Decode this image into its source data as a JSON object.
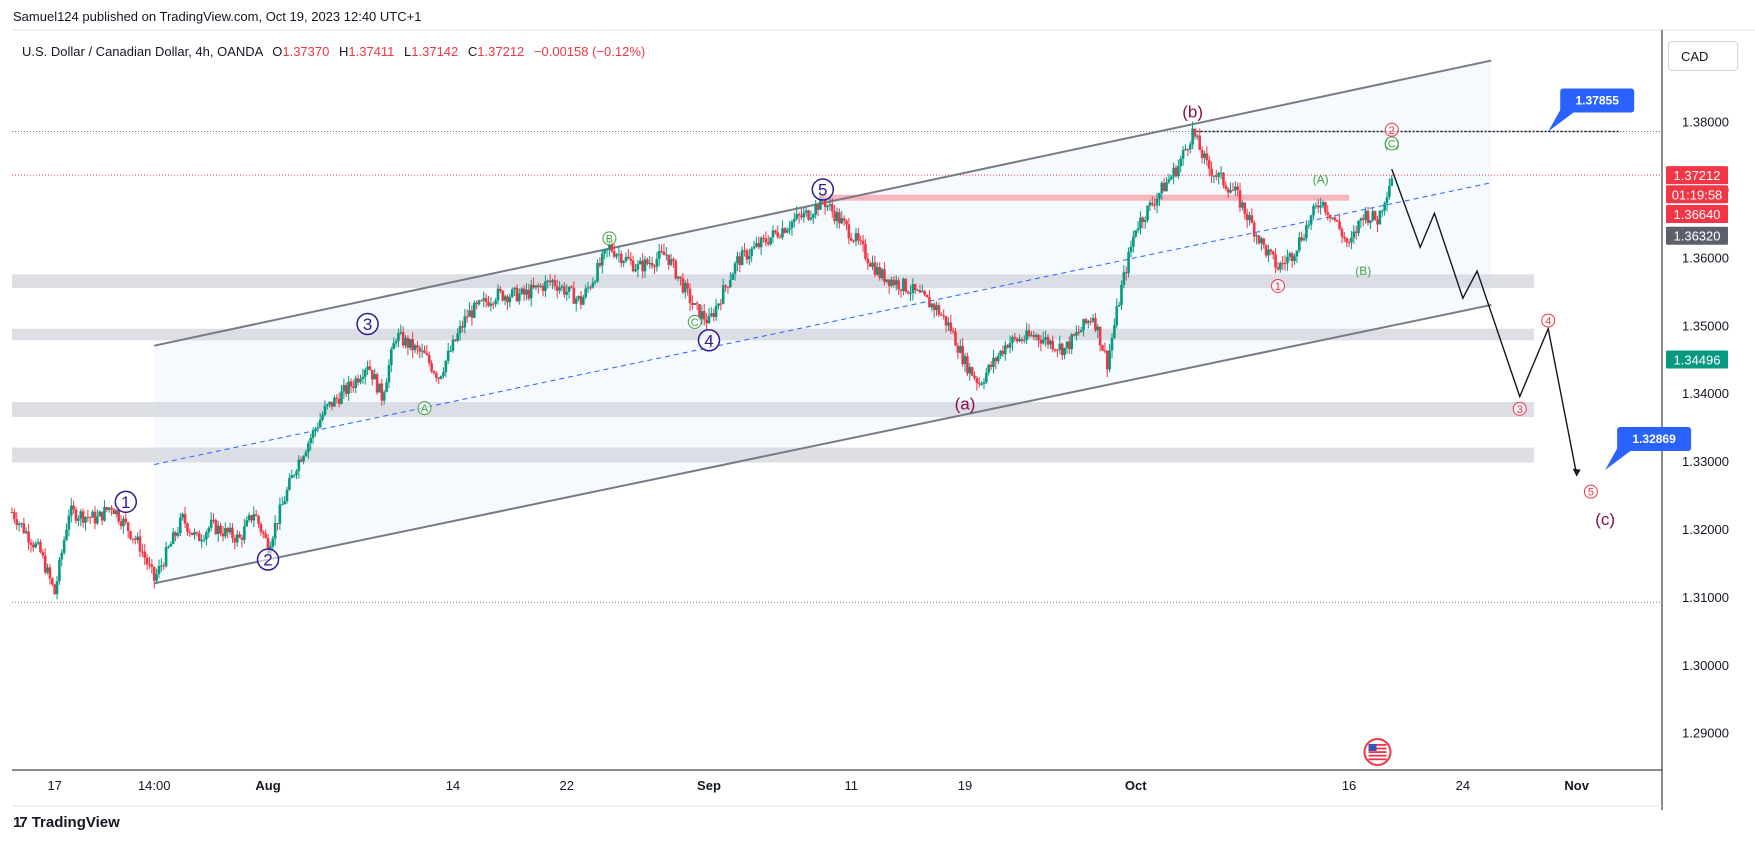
{
  "header": {
    "published": "Samuel124 published on TradingView.com, Oct 19, 2023 12:40 UTC+1"
  },
  "legend": {
    "symbol": "U.S. Dollar / Canadian Dollar, 4h, OANDA",
    "o_label": "O",
    "o": "1.37370",
    "h_label": "H",
    "h": "1.37411",
    "l_label": "L",
    "l": "1.37142",
    "c_label": "C",
    "c": "1.37212",
    "change": "−0.00158 (−0.12%)"
  },
  "currency": "CAD",
  "footer": {
    "brand": "TradingView",
    "logo": "17"
  },
  "colors": {
    "up": "#089981",
    "down": "#f23645",
    "channel": "#787b86",
    "wave_purple": "#311b92",
    "wave_green": "#43a047",
    "wave_maroon": "#880e4f",
    "wave_red": "#f23645",
    "blue_label": "#2962ff",
    "midline": "#2962ff",
    "zone": "#d1d4dc",
    "resistance": "#f7a9b3"
  },
  "chart_data": {
    "type": "candlestick",
    "title": "U.S. Dollar / Canadian Dollar, 4h, OANDA",
    "ylim": [
      1.2845,
      1.3935
    ],
    "y_ticks": [
      "1.38000",
      "1.37000",
      "1.36000",
      "1.35000",
      "1.34000",
      "1.33000",
      "1.32000",
      "1.31000",
      "1.30000",
      "1.29000"
    ],
    "y_tick_values": [
      1.38,
      1.37,
      1.36,
      1.35,
      1.34,
      1.33,
      1.32,
      1.31,
      1.3,
      1.29
    ],
    "x_range": [
      "2023-07-14",
      "2023-11-07"
    ],
    "x_ticks": [
      {
        "date": "2023-07-17",
        "label": "17"
      },
      {
        "date": "2023-07-24",
        "label": "14:00"
      },
      {
        "date": "2023-08-01",
        "label": "Aug"
      },
      {
        "date": "2023-08-14",
        "label": "14"
      },
      {
        "date": "2023-08-22",
        "label": "22"
      },
      {
        "date": "2023-09-01",
        "label": "Sep"
      },
      {
        "date": "2023-09-11",
        "label": "11"
      },
      {
        "date": "2023-09-19",
        "label": "19"
      },
      {
        "date": "2023-10-01",
        "label": "Oct"
      },
      {
        "date": "2023-10-16",
        "label": "16"
      },
      {
        "date": "2023-10-24",
        "label": "24"
      },
      {
        "date": "2023-11-01",
        "label": "Nov"
      }
    ],
    "price_path": [
      [
        "2023-07-14",
        1.3225
      ],
      [
        "2023-07-16",
        1.3165
      ],
      [
        "2023-07-17",
        1.3105
      ],
      [
        "2023-07-18",
        1.3225
      ],
      [
        "2023-07-20",
        1.3215
      ],
      [
        "2023-07-21",
        1.3235
      ],
      [
        "2023-07-23",
        1.3175
      ],
      [
        "2023-07-24",
        1.3125
      ],
      [
        "2023-07-26",
        1.3215
      ],
      [
        "2023-07-27",
        1.3185
      ],
      [
        "2023-07-28",
        1.3205
      ],
      [
        "2023-07-30",
        1.3185
      ],
      [
        "2023-07-31",
        1.3225
      ],
      [
        "2023-08-01",
        1.3175
      ],
      [
        "2023-08-03",
        1.3295
      ],
      [
        "2023-08-05",
        1.3375
      ],
      [
        "2023-08-07",
        1.3415
      ],
      [
        "2023-08-08",
        1.3445
      ],
      [
        "2023-08-09",
        1.3395
      ],
      [
        "2023-08-10",
        1.3485
      ],
      [
        "2023-08-12",
        1.3455
      ],
      [
        "2023-08-13",
        1.3425
      ],
      [
        "2023-08-15",
        1.3515
      ],
      [
        "2023-08-17",
        1.3545
      ],
      [
        "2023-08-19",
        1.3545
      ],
      [
        "2023-08-21",
        1.3565
      ],
      [
        "2023-08-23",
        1.3535
      ],
      [
        "2023-08-25",
        1.3615
      ],
      [
        "2023-08-27",
        1.3585
      ],
      [
        "2023-08-29",
        1.3605
      ],
      [
        "2023-08-31",
        1.3525
      ],
      [
        "2023-09-01",
        1.3505
      ],
      [
        "2023-09-03",
        1.3595
      ],
      [
        "2023-09-05",
        1.3625
      ],
      [
        "2023-09-07",
        1.3655
      ],
      [
        "2023-09-08",
        1.3665
      ],
      [
        "2023-09-09",
        1.3685
      ],
      [
        "2023-09-11",
        1.3635
      ],
      [
        "2023-09-13",
        1.3575
      ],
      [
        "2023-09-15",
        1.3555
      ],
      [
        "2023-09-17",
        1.3525
      ],
      [
        "2023-09-18",
        1.3495
      ],
      [
        "2023-09-19",
        1.3445
      ],
      [
        "2023-09-20",
        1.3415
      ],
      [
        "2023-09-22",
        1.3475
      ],
      [
        "2023-09-24",
        1.3485
      ],
      [
        "2023-09-26",
        1.3465
      ],
      [
        "2023-09-28",
        1.3515
      ],
      [
        "2023-09-29",
        1.3445
      ],
      [
        "2023-09-30",
        1.3555
      ],
      [
        "2023-10-01",
        1.3645
      ],
      [
        "2023-10-03",
        1.3705
      ],
      [
        "2023-10-04",
        1.3735
      ],
      [
        "2023-10-05",
        1.3785
      ],
      [
        "2023-10-06",
        1.3735
      ],
      [
        "2023-10-08",
        1.3695
      ],
      [
        "2023-10-09",
        1.3655
      ],
      [
        "2023-10-10",
        1.3615
      ],
      [
        "2023-10-11",
        1.3585
      ],
      [
        "2023-10-12",
        1.3605
      ],
      [
        "2023-10-14",
        1.3685
      ],
      [
        "2023-10-15",
        1.3655
      ],
      [
        "2023-10-16",
        1.3615
      ],
      [
        "2023-10-17",
        1.3665
      ],
      [
        "2023-10-18",
        1.3655
      ],
      [
        "2023-10-19",
        1.3721
      ]
    ],
    "horizontal_levels": [
      {
        "name": "dotted-high",
        "price": 1.37855
      },
      {
        "name": "current-price-line",
        "price": 1.37212
      },
      {
        "name": "low-line",
        "price": 1.3092
      }
    ],
    "zones": [
      {
        "name": "zone-1",
        "from": 1.3555,
        "to": 1.3575
      },
      {
        "name": "zone-2",
        "from": 1.3478,
        "to": 1.3495
      },
      {
        "name": "zone-3",
        "from": 1.3365,
        "to": 1.3387
      },
      {
        "name": "zone-4",
        "from": 1.3298,
        "to": 1.332
      }
    ],
    "resistance_band": {
      "from_date": "2023-09-09",
      "to_date": "2023-10-16",
      "price": 1.3688
    },
    "channel": {
      "upper": [
        [
          "2023-07-24",
          1.347
        ],
        [
          "2023-10-26",
          1.389
        ]
      ],
      "lower": [
        [
          "2023-07-24",
          1.312
        ],
        [
          "2023-10-26",
          1.353
        ]
      ],
      "mid": [
        [
          "2023-07-24",
          1.3295
        ],
        [
          "2023-10-26",
          1.371
        ]
      ]
    },
    "projection": [
      [
        "2023-10-19",
        1.373
      ],
      [
        "2023-10-21",
        1.3615
      ],
      [
        "2023-10-22",
        1.3665
      ],
      [
        "2023-10-24",
        1.354
      ],
      [
        "2023-10-25",
        1.358
      ],
      [
        "2023-10-28",
        1.3395
      ],
      [
        "2023-10-30",
        1.3495
      ],
      [
        "2023-11-01",
        1.328
      ]
    ],
    "wave_labels": [
      {
        "text": "1",
        "style": "circle",
        "color": "wave_purple",
        "date": "2023-07-22",
        "price": 1.324
      },
      {
        "text": "2",
        "style": "circle",
        "color": "wave_purple",
        "date": "2023-08-01",
        "price": 1.3155
      },
      {
        "text": "3",
        "style": "circle",
        "color": "wave_purple",
        "date": "2023-08-08",
        "price": 1.3502
      },
      {
        "text": "4",
        "style": "circle",
        "color": "wave_purple",
        "date": "2023-09-01",
        "price": 1.3478
      },
      {
        "text": "5",
        "style": "circle",
        "color": "wave_purple",
        "date": "2023-09-09",
        "price": 1.37
      },
      {
        "text": "A",
        "style": "small-circle",
        "color": "wave_green",
        "date": "2023-08-12",
        "price": 1.3378
      },
      {
        "text": "B",
        "style": "small-circle",
        "color": "wave_green",
        "date": "2023-08-25",
        "price": 1.3628
      },
      {
        "text": "C",
        "style": "small-circle",
        "color": "wave_green",
        "date": "2023-08-31",
        "price": 1.3505
      },
      {
        "text": "(a)",
        "style": "paren",
        "color": "wave_maroon",
        "date": "2023-09-19",
        "price": 1.3385
      },
      {
        "text": "(b)",
        "style": "paren",
        "color": "wave_maroon",
        "date": "2023-10-05",
        "price": 1.3815
      },
      {
        "text": "(c)",
        "style": "paren",
        "color": "wave_maroon",
        "date": "2023-11-03",
        "price": 1.3215
      },
      {
        "text": "(A)",
        "style": "paren-small",
        "color": "wave_green",
        "date": "2023-10-14",
        "price": 1.3715
      },
      {
        "text": "(B)",
        "style": "paren-small",
        "color": "wave_green",
        "date": "2023-10-17",
        "price": 1.358
      },
      {
        "text": "(C)",
        "style": "small-circle",
        "color": "wave_green",
        "date": "2023-10-19",
        "price": 1.3768
      },
      {
        "text": "1",
        "style": "small-circle",
        "color": "wave_red",
        "date": "2023-10-11",
        "price": 1.3558
      },
      {
        "text": "2",
        "style": "small-circle",
        "color": "wave_red",
        "date": "2023-10-19",
        "price": 1.3788
      },
      {
        "text": "3",
        "style": "small-circle",
        "color": "wave_red",
        "date": "2023-10-28",
        "price": 1.3377
      },
      {
        "text": "4",
        "style": "small-circle",
        "color": "wave_red",
        "date": "2023-10-30",
        "price": 1.3507
      },
      {
        "text": "5",
        "style": "small-circle",
        "color": "wave_red",
        "date": "2023-11-02",
        "price": 1.3255
      }
    ],
    "callouts": [
      {
        "text": "1.37855",
        "date": "2023-10-30",
        "price": 1.37855
      },
      {
        "text": "1.32869",
        "date": "2023-11-03",
        "price": 1.32869
      }
    ],
    "price_axis_labels": [
      {
        "text": "1.37212",
        "price": 1.37212,
        "bg": "#f23645",
        "color": "#ffffff"
      },
      {
        "text": "01:19:58",
        "price": 1.3693,
        "bg": "#f23645",
        "color": "#ffffff"
      },
      {
        "text": "1.36640",
        "price": 1.3664,
        "bg": "#f23645",
        "color": "#ffffff"
      },
      {
        "text": "1.36320",
        "price": 1.3632,
        "bg": "#5d606b",
        "color": "#ffffff"
      },
      {
        "text": "1.34496",
        "price": 1.34496,
        "bg": "#089981",
        "color": "#ffffff"
      }
    ]
  }
}
